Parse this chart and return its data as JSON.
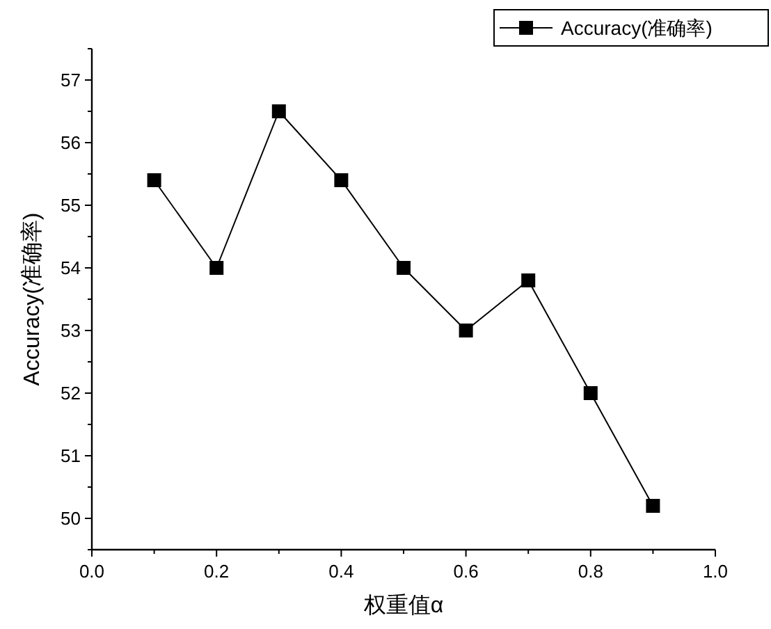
{
  "chart_data": {
    "type": "line",
    "xlabel": "权重值α",
    "ylabel": "Accuracy(准确率)",
    "x": [
      0.1,
      0.2,
      0.3,
      0.4,
      0.5,
      0.6,
      0.7,
      0.8,
      0.9
    ],
    "series": [
      {
        "name": "Accuracy(准确率)",
        "color": "#000000",
        "values": [
          55.4,
          54.0,
          56.5,
          55.4,
          54.0,
          53.0,
          53.8,
          52.0,
          50.2
        ]
      }
    ],
    "xlim": [
      0,
      1
    ],
    "xticks": [
      {
        "value": 0,
        "label": "0.0"
      },
      0.2,
      0.4,
      0.6,
      0.8,
      {
        "value": 1,
        "label": "1.0"
      }
    ],
    "ylim": [
      49.5,
      57.5
    ],
    "yticks": [
      50,
      51,
      52,
      53,
      54,
      55,
      56,
      57
    ],
    "marker": "square",
    "line_style": "solid",
    "legend": "top right",
    "grid": false
  }
}
